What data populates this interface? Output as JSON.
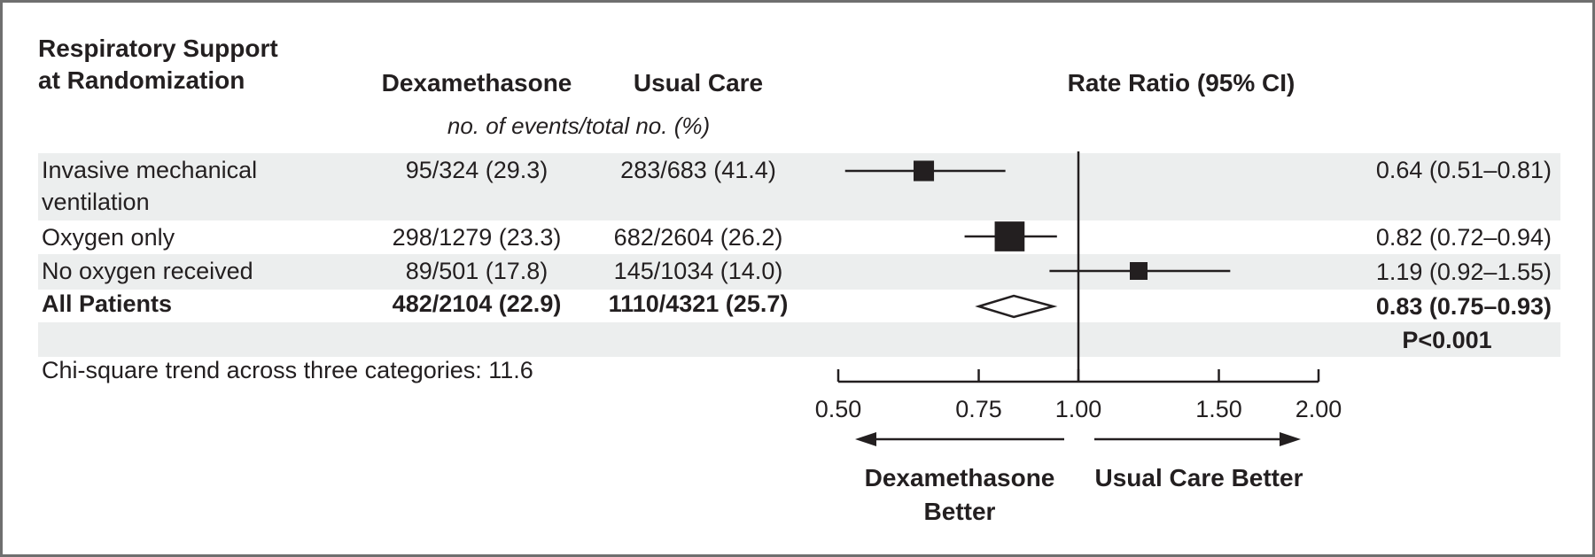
{
  "headers": {
    "subgroup": "Respiratory Support at Randomization",
    "group1": "Dexamethasone",
    "group2": "Usual Care",
    "effect": "Rate Ratio (95% CI)",
    "counts_note": "no. of events/total no. (%)"
  },
  "rows": [
    {
      "label": "Invasive mechanical ventilation",
      "group1": "95/324 (29.3)",
      "group2": "283/683 (41.4)",
      "ci_text": "0.64 (0.51–0.81)"
    },
    {
      "label": "Oxygen only",
      "group1": "298/1279 (23.3)",
      "group2": "682/2604 (26.2)",
      "ci_text": "0.82 (0.72–0.94)"
    },
    {
      "label": "No oxygen received",
      "group1": "89/501 (17.8)",
      "group2": "145/1034 (14.0)",
      "ci_text": "1.19 (0.92–1.55)"
    },
    {
      "label": "All Patients",
      "group1": "482/2104 (22.9)",
      "group2": "1110/4321 (25.7)",
      "ci_text": "0.83 (0.75–0.93)",
      "p_text": "P<0.001"
    }
  ],
  "footnote": "Chi-square trend across three categories: 11.6",
  "direction": {
    "left": "Dexamethasone Better",
    "right": "Usual Care Better"
  },
  "colors": {
    "marker": "#231f20",
    "band": "#eceeee",
    "border": "#6f6f6f"
  },
  "chart_data": {
    "type": "forest",
    "x_scale": "log",
    "xlim": [
      0.5,
      2.0
    ],
    "reference_line": 1.0,
    "x_ticks": [
      0.5,
      0.75,
      1.0,
      1.5,
      2.0
    ],
    "x_tick_labels": [
      "0.50",
      "0.75",
      "1.00",
      "1.50",
      "2.00"
    ],
    "series": [
      {
        "name": "Invasive mechanical ventilation",
        "estimate": 0.64,
        "lower": 0.51,
        "upper": 0.81,
        "weight": 0.26,
        "marker": "square"
      },
      {
        "name": "Oxygen only",
        "estimate": 0.82,
        "lower": 0.72,
        "upper": 0.94,
        "weight": 0.64,
        "marker": "square"
      },
      {
        "name": "No oxygen received",
        "estimate": 1.19,
        "lower": 0.92,
        "upper": 1.55,
        "weight": 0.15,
        "marker": "square"
      },
      {
        "name": "All Patients",
        "estimate": 0.83,
        "lower": 0.75,
        "upper": 0.93,
        "weight": 1.0,
        "marker": "diamond"
      }
    ]
  }
}
